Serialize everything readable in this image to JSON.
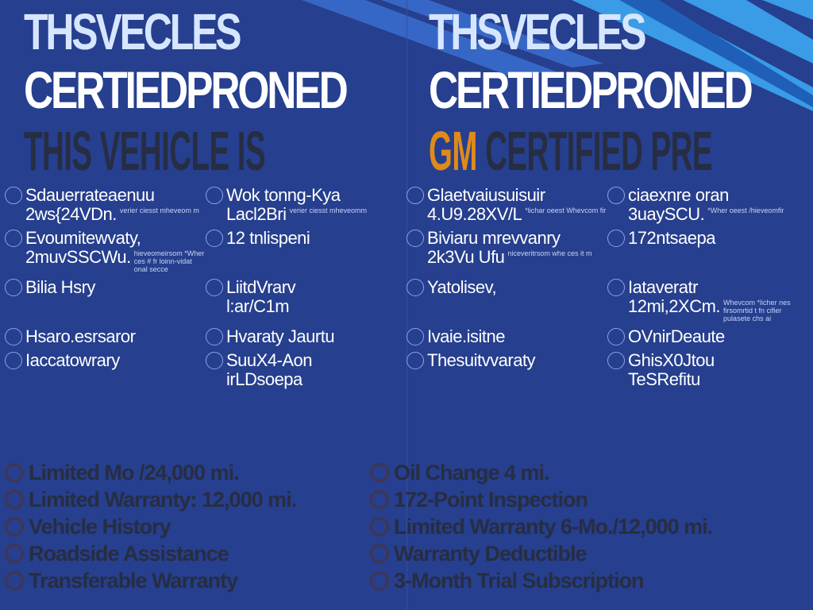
{
  "colors": {
    "background": "#263f8e",
    "headline": "#d6e6ff",
    "accent_gm": "#e08a1a",
    "ghost_text": "#3a3a3a",
    "stripe": "#4a8fe0"
  },
  "headline_left": {
    "line1": "THSVECLES",
    "line2": "CERTIEDPRONED"
  },
  "headline_right": {
    "line1": "THSVECLES",
    "line2": "CERTIEDPRONED"
  },
  "ghost_headline": {
    "line1": "THIS VEHICLE IS",
    "gm": "GM",
    "line2": "CERTIFIED PRE"
  },
  "left_items": [
    {
      "text": "Sdauerrateaenuu",
      "sub": "2ws{24VDn.",
      "fine": "verier ciesst mheveom m"
    },
    {
      "text": "Evoumitewvaty,",
      "sub": "2muvSSCWu.",
      "fine": "hieveomeirsom *Wher ces # fr loinn-vidat onal secce"
    },
    {
      "text": "Bilia Hsry",
      "sub": "",
      "fine": ""
    },
    {
      "text": "Hsaro.esrsaror",
      "sub": "",
      "fine": ""
    },
    {
      "text": "Iaccatowrary",
      "sub": "",
      "fine": ""
    }
  ],
  "left_items_col2": [
    {
      "text": "Wok tonng-Kya",
      "sub": "Lacl2Bri",
      "fine": "verier ciesst mheveomm"
    },
    {
      "text": "12 tnlispeni",
      "sub": "",
      "fine": ""
    },
    {
      "text": "LiitdVrarv",
      "sub": "l:ar/C1m",
      "fine": ""
    },
    {
      "text": "Hvaraty Jaurtu",
      "sub": "",
      "fine": ""
    },
    {
      "text": "SuuX4-Aon",
      "sub": "irLDsoepa",
      "fine": ""
    }
  ],
  "right_items": [
    {
      "text": "Glaetvaiusuisuir",
      "sub": "4.U9.28XV/L",
      "fine": "*lichar oeest Whevcom fir"
    },
    {
      "text": "Biviaru mrevvanry",
      "sub": "2k3Vu Ufu",
      "fine": "niceveritrsom whe ces it m"
    },
    {
      "text": "Yatolisev,",
      "sub": "",
      "fine": ""
    },
    {
      "text": "Ivaie.isitne",
      "sub": "",
      "fine": ""
    },
    {
      "text": "Thesuitvvaraty",
      "sub": "",
      "fine": ""
    }
  ],
  "right_items_col2": [
    {
      "text": "ciaexnre oran",
      "sub": "3uaySCU.",
      "fine": "*Wher oeest /hieveomfir"
    },
    {
      "text": "172ntsaepa",
      "sub": "",
      "fine": ""
    },
    {
      "text": "Iataveratr",
      "sub": "12mi,2XCm.",
      "fine": "Whevcom *licher nes firsomrtid t fn cifier pulasete chs ai"
    },
    {
      "text": "OVnirDeaute",
      "sub": "",
      "fine": ""
    },
    {
      "text": "GhisX0Jtou",
      "sub": "TeSRefitu",
      "fine": ""
    }
  ],
  "ghost_items": [
    "Limited Mo /24,000 mi.",
    "Limited Warranty: 12,000 mi.",
    "Vehicle History",
    "Roadside Assistance",
    "Transferable Warranty",
    "Oil Change 4 mi.",
    "172-Point Inspection",
    "Limited Warranty 6-Mo./12,000 mi.",
    "Warranty Deductible",
    "3-Month Trial Subscription"
  ]
}
